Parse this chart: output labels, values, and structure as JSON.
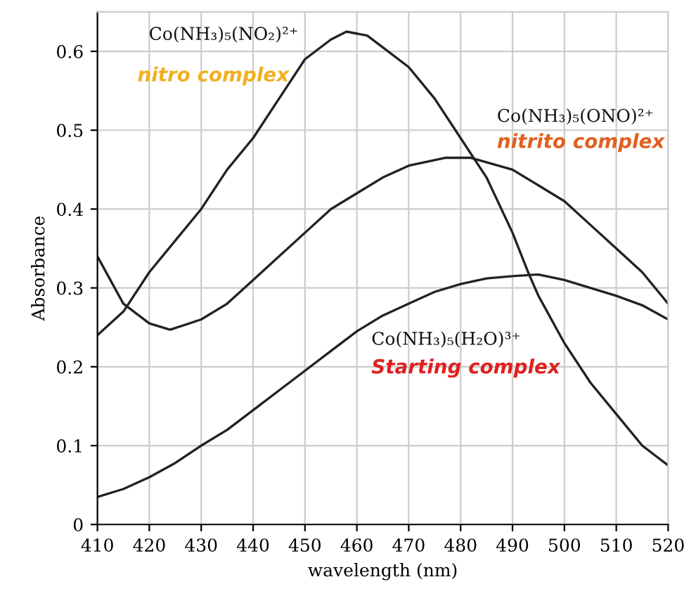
{
  "chart_data": {
    "type": "line",
    "xlabel": "wavelength (nm)",
    "ylabel": "Absorbance",
    "xlim": [
      410,
      520
    ],
    "ylim": [
      0,
      0.65
    ],
    "xticks": [
      410,
      420,
      430,
      440,
      450,
      460,
      470,
      480,
      490,
      500,
      510,
      520
    ],
    "yticks": [
      0,
      0.1,
      0.2,
      0.3,
      0.4,
      0.5,
      0.6
    ],
    "grid": true,
    "marker": "none",
    "line_style": "solid",
    "series": [
      {
        "color": "#222222",
        "x": [
          410,
          415,
          420,
          425,
          430,
          435,
          440,
          445,
          450,
          455,
          458,
          462,
          465,
          470,
          475,
          480,
          485,
          490,
          493,
          495,
          500,
          505,
          510,
          515,
          520
        ],
        "values": [
          0.24,
          0.27,
          0.32,
          0.36,
          0.4,
          0.45,
          0.49,
          0.54,
          0.59,
          0.615,
          0.625,
          0.62,
          0.605,
          0.58,
          0.54,
          0.49,
          0.44,
          0.37,
          0.32,
          0.29,
          0.23,
          0.18,
          0.14,
          0.1,
          0.075
        ]
      },
      {
        "color": "#222222",
        "x": [
          410,
          415,
          420,
          424,
          430,
          435,
          440,
          445,
          450,
          455,
          460,
          465,
          470,
          477,
          482,
          490,
          495,
          500,
          505,
          510,
          515,
          520
        ],
        "values": [
          0.34,
          0.28,
          0.255,
          0.247,
          0.26,
          0.28,
          0.31,
          0.34,
          0.37,
          0.4,
          0.42,
          0.44,
          0.455,
          0.465,
          0.465,
          0.45,
          0.43,
          0.41,
          0.38,
          0.35,
          0.32,
          0.28
        ]
      },
      {
        "color": "#222222",
        "x": [
          410,
          415,
          420,
          425,
          430,
          435,
          440,
          445,
          450,
          455,
          460,
          465,
          470,
          475,
          480,
          485,
          490,
          495,
          500,
          505,
          510,
          515,
          520
        ],
        "values": [
          0.035,
          0.045,
          0.06,
          0.078,
          0.1,
          0.12,
          0.145,
          0.17,
          0.195,
          0.22,
          0.245,
          0.265,
          0.28,
          0.295,
          0.305,
          0.312,
          0.315,
          0.317,
          0.31,
          0.3,
          0.29,
          0.278,
          0.26
        ]
      }
    ],
    "annotations": [
      "Co(NH₃)₅(NO₂)²⁺",
      "nitro complex",
      "Co(NH₃)₅(ONO)²⁺",
      "nitrito complex",
      "Co(NH₃)₅(H₂O)³⁺",
      "Starting complex"
    ]
  }
}
